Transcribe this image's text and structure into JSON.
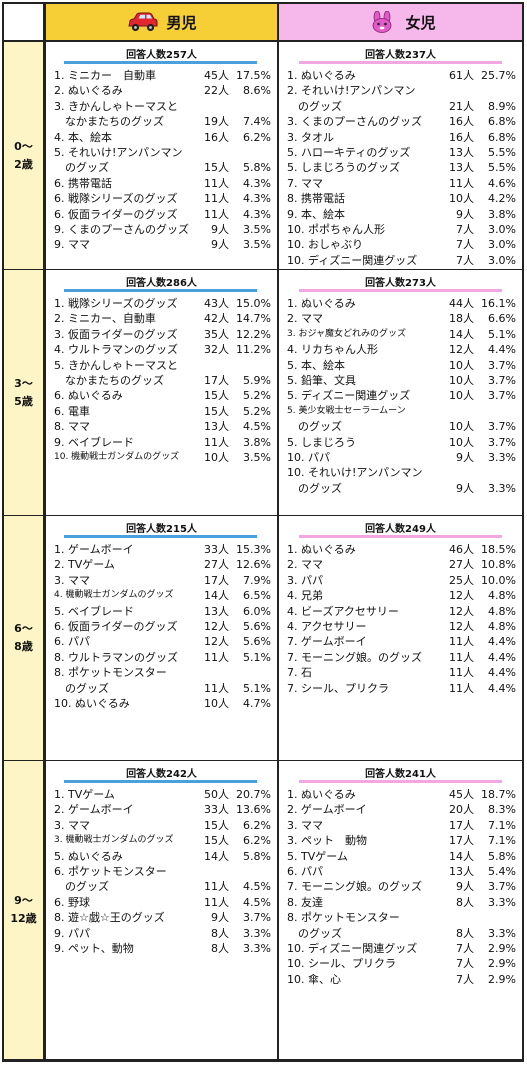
{
  "header": {
    "boys": "男児",
    "girls": "女児"
  },
  "icons": {
    "boys": "red-car-icon",
    "girls": "pink-rabbit-icon"
  },
  "colors": {
    "boys_header": "#f6cf37",
    "girls_header": "#f6b8ea",
    "age_column": "#fdf5c6",
    "boys_underline": "#4aa0dc",
    "girls_underline": "#f2a7e2"
  },
  "sections": [
    {
      "age_line1": "0～",
      "age_line2": "2歳",
      "boys": {
        "respondents": "回答人数257人",
        "items": [
          {
            "name": "1. ミニカー　自動車",
            "count": "45人",
            "pct": "17.5%"
          },
          {
            "name": "2. ぬいぐるみ",
            "count": "22人",
            "pct": "8.6%"
          },
          {
            "name": "3. きかんしゃトーマスと",
            "count": "",
            "pct": ""
          },
          {
            "name": "　なかまたちのグッズ",
            "count": "19人",
            "pct": "7.4%"
          },
          {
            "name": "4. 本、絵本",
            "count": "16人",
            "pct": "6.2%"
          },
          {
            "name": "5. それいけ!アンパンマン",
            "count": "",
            "pct": ""
          },
          {
            "name": "　のグッズ",
            "count": "15人",
            "pct": "5.8%"
          },
          {
            "name": "6. 携帯電話",
            "count": "11人",
            "pct": "4.3%"
          },
          {
            "name": "6. 戦隊シリーズのグッズ",
            "count": "11人",
            "pct": "4.3%"
          },
          {
            "name": "6. 仮面ライダーのグッズ",
            "count": "11人",
            "pct": "4.3%"
          },
          {
            "name": "9. くまのプーさんのグッズ",
            "count": "9人",
            "pct": "3.5%"
          },
          {
            "name": "9. ママ",
            "count": "9人",
            "pct": "3.5%"
          }
        ]
      },
      "girls": {
        "respondents": "回答人数237人",
        "items": [
          {
            "name": "1. ぬいぐるみ",
            "count": "61人",
            "pct": "25.7%"
          },
          {
            "name": "2. それいけ!アンパンマン",
            "count": "",
            "pct": ""
          },
          {
            "name": "　のグッズ",
            "count": "21人",
            "pct": "8.9%"
          },
          {
            "name": "3. くまのプーさんのグッズ",
            "count": "16人",
            "pct": "6.8%"
          },
          {
            "name": "3. タオル",
            "count": "16人",
            "pct": "6.8%"
          },
          {
            "name": "5. ハローキティのグッズ",
            "count": "13人",
            "pct": "5.5%"
          },
          {
            "name": "5. しまじろうのグッズ",
            "count": "13人",
            "pct": "5.5%"
          },
          {
            "name": "7. ママ",
            "count": "11人",
            "pct": "4.6%"
          },
          {
            "name": "8. 携帯電話",
            "count": "10人",
            "pct": "4.2%"
          },
          {
            "name": "9. 本、絵本",
            "count": "9人",
            "pct": "3.8%"
          },
          {
            "name": "10. ポポちゃん人形",
            "count": "7人",
            "pct": "3.0%"
          },
          {
            "name": "10. おしゃぶり",
            "count": "7人",
            "pct": "3.0%"
          },
          {
            "name": "10. ディズニー関連グッズ",
            "count": "7人",
            "pct": "3.0%"
          }
        ]
      }
    },
    {
      "age_line1": "3～",
      "age_line2": "5歳",
      "boys": {
        "respondents": "回答人数286人",
        "items": [
          {
            "name": "1. 戦隊シリーズのグッズ",
            "count": "43人",
            "pct": "15.0%"
          },
          {
            "name": "2. ミニカー、自動車",
            "count": "42人",
            "pct": "14.7%"
          },
          {
            "name": "3. 仮面ライダーのグッズ",
            "count": "35人",
            "pct": "12.2%"
          },
          {
            "name": "4. ウルトラマンのグッズ",
            "count": "32人",
            "pct": "11.2%"
          },
          {
            "name": "5. きかんしゃトーマスと",
            "count": "",
            "pct": ""
          },
          {
            "name": "　なかまたちのグッズ",
            "count": "17人",
            "pct": "5.9%"
          },
          {
            "name": "6. ぬいぐるみ",
            "count": "15人",
            "pct": "5.2%"
          },
          {
            "name": "6. 電車",
            "count": "15人",
            "pct": "5.2%"
          },
          {
            "name": "8. ママ",
            "count": "13人",
            "pct": "4.5%"
          },
          {
            "name": "9. ベイブレード",
            "count": "11人",
            "pct": "3.8%"
          },
          {
            "name": "10. 機動戦士ガンダムのグッズ",
            "count": "10人",
            "pct": "3.5%",
            "small": true
          }
        ]
      },
      "girls": {
        "respondents": "回答人数273人",
        "items": [
          {
            "name": "1. ぬいぐるみ",
            "count": "44人",
            "pct": "16.1%"
          },
          {
            "name": "2. ママ",
            "count": "18人",
            "pct": "6.6%"
          },
          {
            "name": "3. おジャ魔女どれみのグッズ",
            "count": "14人",
            "pct": "5.1%",
            "small": true
          },
          {
            "name": "4. リカちゃん人形",
            "count": "12人",
            "pct": "4.4%"
          },
          {
            "name": "5. 本、絵本",
            "count": "10人",
            "pct": "3.7%"
          },
          {
            "name": "5. 鉛筆、文具",
            "count": "10人",
            "pct": "3.7%"
          },
          {
            "name": "5. ディズニー関連グッズ",
            "count": "10人",
            "pct": "3.7%"
          },
          {
            "name": "5. 美少女戦士セーラームーン",
            "count": "",
            "pct": "",
            "small": true
          },
          {
            "name": "　のグッズ",
            "count": "10人",
            "pct": "3.7%"
          },
          {
            "name": "5. しまじろう",
            "count": "10人",
            "pct": "3.7%"
          },
          {
            "name": "10. パパ",
            "count": "9人",
            "pct": "3.3%"
          },
          {
            "name": "10. それいけ!アンパンマン",
            "count": "",
            "pct": ""
          },
          {
            "name": "　のグッズ",
            "count": "9人",
            "pct": "3.3%"
          }
        ]
      }
    },
    {
      "age_line1": "6～",
      "age_line2": "8歳",
      "boys": {
        "respondents": "回答人数215人",
        "items": [
          {
            "name": "1. ゲームボーイ",
            "count": "33人",
            "pct": "15.3%"
          },
          {
            "name": "2. TVゲーム",
            "count": "27人",
            "pct": "12.6%"
          },
          {
            "name": "3. ママ",
            "count": "17人",
            "pct": "7.9%"
          },
          {
            "name": "4. 機動戦士ガンダムのグッズ",
            "count": "14人",
            "pct": "6.5%",
            "small": true
          },
          {
            "name": "5. ベイブレード",
            "count": "13人",
            "pct": "6.0%"
          },
          {
            "name": "6. 仮面ライダーのグッズ",
            "count": "12人",
            "pct": "5.6%"
          },
          {
            "name": "6. パパ",
            "count": "12人",
            "pct": "5.6%"
          },
          {
            "name": "8. ウルトラマンのグッズ",
            "count": "11人",
            "pct": "5.1%"
          },
          {
            "name": "8. ポケットモンスター",
            "count": "",
            "pct": ""
          },
          {
            "name": "　のグッズ",
            "count": "11人",
            "pct": "5.1%"
          },
          {
            "name": "10. ぬいぐるみ",
            "count": "10人",
            "pct": "4.7%"
          }
        ]
      },
      "girls": {
        "respondents": "回答人数249人",
        "items": [
          {
            "name": "1. ぬいぐるみ",
            "count": "46人",
            "pct": "18.5%"
          },
          {
            "name": "2. ママ",
            "count": "27人",
            "pct": "10.8%"
          },
          {
            "name": "3. パパ",
            "count": "25人",
            "pct": "10.0%"
          },
          {
            "name": "4. 兄弟",
            "count": "12人",
            "pct": "4.8%"
          },
          {
            "name": "4. ビーズアクセサリー",
            "count": "12人",
            "pct": "4.8%"
          },
          {
            "name": "4. アクセサリー",
            "count": "12人",
            "pct": "4.8%"
          },
          {
            "name": "7. ゲームボーイ",
            "count": "11人",
            "pct": "4.4%"
          },
          {
            "name": "7. モーニング娘。のグッズ",
            "count": "11人",
            "pct": "4.4%"
          },
          {
            "name": "7. 石",
            "count": "11人",
            "pct": "4.4%"
          },
          {
            "name": "7. シール、プリクラ",
            "count": "11人",
            "pct": "4.4%"
          }
        ]
      }
    },
    {
      "age_line1": "9～",
      "age_line2": "12歳",
      "boys": {
        "respondents": "回答人数242人",
        "items": [
          {
            "name": "1. TVゲーム",
            "count": "50人",
            "pct": "20.7%"
          },
          {
            "name": "2. ゲームボーイ",
            "count": "33人",
            "pct": "13.6%"
          },
          {
            "name": "3. ママ",
            "count": "15人",
            "pct": "6.2%"
          },
          {
            "name": "3. 機動戦士ガンダムのグッズ",
            "count": "15人",
            "pct": "6.2%",
            "small": true
          },
          {
            "name": "5. ぬいぐるみ",
            "count": "14人",
            "pct": "5.8%"
          },
          {
            "name": "6. ポケットモンスター",
            "count": "",
            "pct": ""
          },
          {
            "name": "　のグッズ",
            "count": "11人",
            "pct": "4.5%"
          },
          {
            "name": "6. 野球",
            "count": "11人",
            "pct": "4.5%"
          },
          {
            "name": "8. 遊☆戯☆王のグッズ",
            "count": "9人",
            "pct": "3.7%"
          },
          {
            "name": "9. パパ",
            "count": "8人",
            "pct": "3.3%"
          },
          {
            "name": "9. ペット、動物",
            "count": "8人",
            "pct": "3.3%"
          }
        ]
      },
      "girls": {
        "respondents": "回答人数241人",
        "items": [
          {
            "name": "1. ぬいぐるみ",
            "count": "45人",
            "pct": "18.7%"
          },
          {
            "name": "2. ゲームボーイ",
            "count": "20人",
            "pct": "8.3%"
          },
          {
            "name": "3. ママ",
            "count": "17人",
            "pct": "7.1%"
          },
          {
            "name": "3. ペット　動物",
            "count": "17人",
            "pct": "7.1%"
          },
          {
            "name": "5. TVゲーム",
            "count": "14人",
            "pct": "5.8%"
          },
          {
            "name": "6. パパ",
            "count": "13人",
            "pct": "5.4%"
          },
          {
            "name": "7. モーニング娘。のグッズ",
            "count": "9人",
            "pct": "3.7%"
          },
          {
            "name": "8. 友達",
            "count": "8人",
            "pct": "3.3%"
          },
          {
            "name": "8. ポケットモンスター",
            "count": "",
            "pct": ""
          },
          {
            "name": "　のグッズ",
            "count": "8人",
            "pct": "3.3%"
          },
          {
            "name": "10. ディズニー関連グッズ",
            "count": "7人",
            "pct": "2.9%"
          },
          {
            "name": "10. シール、プリクラ",
            "count": "7人",
            "pct": "2.9%"
          },
          {
            "name": "10. 傘、心",
            "count": "7人",
            "pct": "2.9%"
          }
        ]
      }
    }
  ]
}
